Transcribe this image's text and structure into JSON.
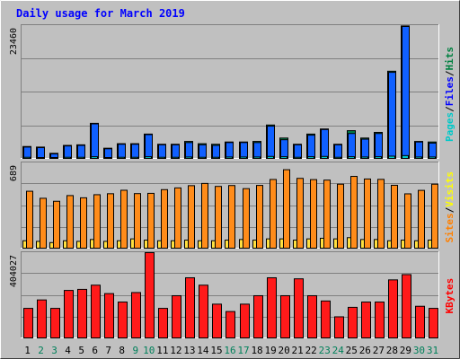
{
  "chart_data": {
    "type": "bar",
    "title": "Daily usage for March 2019",
    "categories": [
      "1",
      "2",
      "3",
      "4",
      "5",
      "6",
      "7",
      "8",
      "9",
      "10",
      "11",
      "12",
      "13",
      "14",
      "15",
      "16",
      "17",
      "18",
      "19",
      "20",
      "21",
      "22",
      "23",
      "24",
      "25",
      "26",
      "27",
      "28",
      "29",
      "30",
      "31"
    ],
    "weekend_days": [
      "2",
      "3",
      "9",
      "10",
      "16",
      "17",
      "23",
      "24",
      "30",
      "31"
    ],
    "panels": [
      {
        "id": "top",
        "ymax": 23460,
        "ymax_label": "23460",
        "side_labels": [
          {
            "text": "Pages",
            "color": "#00c8c8"
          },
          {
            "text": "Files",
            "color": "#0000ff"
          },
          {
            "text": "Hits",
            "color": "#008040"
          }
        ],
        "series": [
          {
            "name": "Hits",
            "color": "#00804a",
            "values": [
              2100,
              2000,
              900,
              2300,
              2400,
              6200,
              1800,
              2600,
              2600,
              4300,
              2500,
              2500,
              3000,
              2600,
              2500,
              2900,
              2900,
              3000,
              5900,
              3600,
              2500,
              4300,
              5200,
              2500,
              4900,
              3600,
              4600,
              15400,
              23400,
              3000,
              2900
            ]
          },
          {
            "name": "Files",
            "color": "#1060ff",
            "values": [
              2000,
              1900,
              800,
              2200,
              2300,
              6100,
              1700,
              2500,
              2500,
              4200,
              2400,
              2400,
              2800,
              2400,
              2300,
              2800,
              2800,
              2800,
              5700,
              3300,
              2400,
              4100,
              5100,
              2400,
              4400,
              3400,
              4400,
              15200,
              23300,
              2900,
              2700
            ]
          },
          {
            "name": "Pages",
            "color": "#00c8c8",
            "values": [
              200,
              150,
              100,
              200,
              200,
              300,
              150,
              200,
              200,
              300,
              200,
              200,
              250,
              200,
              200,
              250,
              250,
              250,
              350,
              300,
              200,
              300,
              350,
              200,
              300,
              250,
              300,
              400,
              500,
              250,
              250
            ]
          }
        ]
      },
      {
        "id": "middle",
        "ymax": 689,
        "ymax_label": "689",
        "side_labels": [
          {
            "text": "Sites",
            "color": "#ff8000"
          },
          {
            "text": "Visits",
            "color": "#ffff00"
          }
        ],
        "series": [
          {
            "name": "Visits",
            "color": "#ffe040",
            "values": [
              60,
              55,
              45,
              60,
              55,
              70,
              55,
              60,
              75,
              65,
              60,
              60,
              65,
              60,
              60,
              65,
              70,
              65,
              75,
              75,
              65,
              75,
              80,
              75,
              85,
              70,
              70,
              60,
              65,
              60,
              65
            ]
          },
          {
            "name": "Sites",
            "color": "#ff8c1a",
            "values": [
              460,
              403,
              379,
              425,
              407,
              432,
              440,
              468,
              441,
              443,
              473,
              487,
              505,
              523,
              499,
              506,
              481,
              507,
              555,
              634,
              564,
              554,
              550,
              517,
              580,
              559,
              556,
              508,
              439,
              467,
              517
            ]
          }
        ]
      },
      {
        "id": "bottom",
        "ymax": 404027,
        "ymax_label": "404027",
        "side_labels": [
          {
            "text": "KBytes",
            "color": "#ff0000"
          }
        ],
        "series": [
          {
            "name": "KBytes",
            "color": "#ff1a1a",
            "values": [
              140000,
              180000,
              140000,
              225000,
              230000,
              250000,
              210000,
              170000,
              215000,
              404000,
              140000,
              200000,
              285000,
              250000,
              160000,
              125000,
              160000,
              200000,
              285000,
              200000,
              280000,
              200000,
              175000,
              100000,
              145000,
              170000,
              170000,
              275000,
              300000,
              150000,
              140000
            ]
          }
        ]
      }
    ]
  },
  "colors": {
    "frame_bg": "#c0c0c0",
    "title": "#0000ff",
    "weekday_label": "#000000",
    "weekend_label": "#00805a",
    "bar_outline": "#000000",
    "gridline": "#808080"
  }
}
